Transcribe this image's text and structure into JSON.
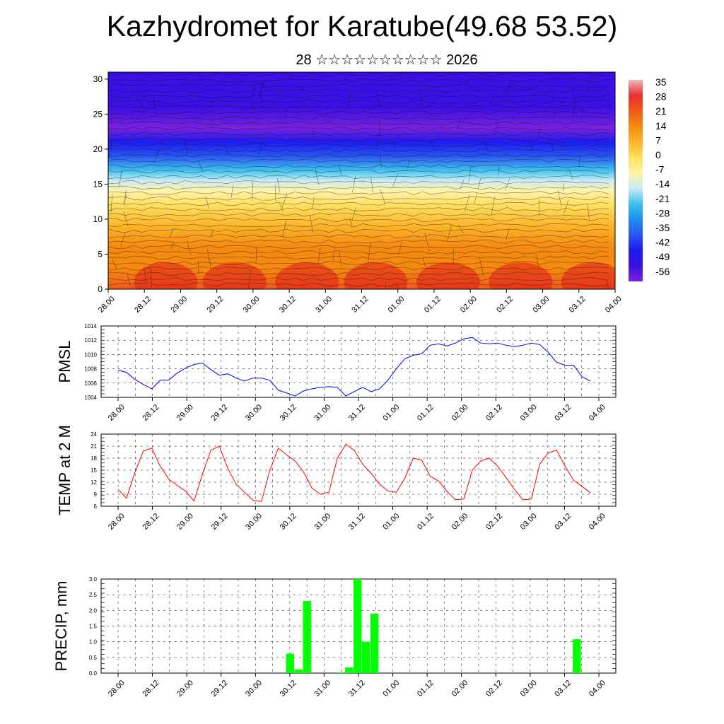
{
  "title": "Kazhydromet for Karatube(49.68 53.52)",
  "subtitle": "28 ☆☆☆☆☆☆☆☆☆☆ 2026",
  "chart_data": [
    {
      "type": "heatmap",
      "panel": "vertical-section",
      "x_ticks": [
        "28.00",
        "28.12",
        "29.00",
        "29.12",
        "30.00",
        "30.12",
        "31.00",
        "31.12",
        "01.00",
        "01.12",
        "02.00",
        "02.12",
        "03.00",
        "03.12",
        "04.00"
      ],
      "y_ticks": [
        0,
        5,
        10,
        15,
        20,
        25,
        30
      ],
      "ylim": [
        0,
        31
      ],
      "colorbar_labels": [
        "35",
        "28",
        "21",
        "14",
        "7",
        "0",
        "-7",
        "-14",
        "-21",
        "-28",
        "-35",
        "-42",
        "-49",
        "-56"
      ],
      "colorbar_colors": [
        "#f2b6b8",
        "#e83030",
        "#ef5a1a",
        "#f68a10",
        "#fbb42a",
        "#fde060",
        "#fff3a8",
        "#c8ecf6",
        "#3fc0ee",
        "#1c8ff0",
        "#2a55f2",
        "#1c1cf0",
        "#3a10e4",
        "#7a22dc"
      ],
      "temperature_profile": [
        {
          "level": 0,
          "value": 22
        },
        {
          "level": 3,
          "value": 17
        },
        {
          "level": 6,
          "value": 13
        },
        {
          "level": 9,
          "value": 8
        },
        {
          "level": 12,
          "value": 3
        },
        {
          "level": 14,
          "value": -5
        },
        {
          "level": 15.5,
          "value": -13
        },
        {
          "level": 17,
          "value": -20
        },
        {
          "level": 19,
          "value": -32
        },
        {
          "level": 21,
          "value": -44
        },
        {
          "level": 23,
          "value": -54
        },
        {
          "level": 26,
          "value": -52
        },
        {
          "level": 31,
          "value": -48
        }
      ]
    },
    {
      "type": "line",
      "ylabel": "PMSL",
      "ylim": [
        1004,
        1014
      ],
      "y_ticks": [
        1004,
        1006,
        1008,
        1010,
        1012,
        1014
      ],
      "x_ticks": [
        "28.00",
        "28.12",
        "29.00",
        "29.12",
        "30.00",
        "30.12",
        "31.00",
        "31.12",
        "01.00",
        "01.12",
        "02.00",
        "02.12",
        "03.00",
        "03.12",
        "04.00"
      ],
      "color": "#0000ff",
      "series": [
        {
          "values": [
            1007.8,
            1007.5,
            1006.5,
            1005.8,
            1005.2,
            1006.4,
            1006.4,
            1007.4,
            1008.1,
            1008.6,
            1008.8,
            1007.9,
            1007.1,
            1007.3,
            1006.7,
            1006.3,
            1006.7,
            1006.7,
            1006.4,
            1005.0,
            1004.6,
            1004.2,
            1004.9,
            1005.2,
            1005.4,
            1005.5,
            1005.4,
            1004.2,
            1004.8,
            1005.4,
            1004.8,
            1005.2,
            1006.4,
            1008.0,
            1009.4,
            1009.9,
            1010.1,
            1011.3,
            1011.5,
            1011.2,
            1011.6,
            1012.2,
            1012.4,
            1011.6,
            1011.5,
            1011.6,
            1011.3,
            1011.1,
            1011.3,
            1011.6,
            1011.4,
            1010.3,
            1008.9,
            1008.5,
            1008.5,
            1006.9,
            1006.3
          ]
        }
      ]
    },
    {
      "type": "line",
      "ylabel": "TEMP at 2 M",
      "ylim": [
        6,
        24
      ],
      "y_ticks": [
        6,
        9,
        12,
        15,
        18,
        21,
        24
      ],
      "x_ticks": [
        "28.00",
        "28.12",
        "29.00",
        "29.12",
        "30.00",
        "30.12",
        "31.00",
        "31.12",
        "01.00",
        "01.12",
        "02.00",
        "02.12",
        "03.00",
        "03.12",
        "04.00"
      ],
      "color": "#ff0000",
      "series": [
        {
          "values": [
            10.2,
            8.0,
            14.5,
            19.8,
            20.5,
            16.0,
            12.8,
            11.2,
            9.8,
            7.3,
            14.0,
            20.0,
            21.0,
            15.5,
            11.5,
            9.5,
            7.5,
            7.2,
            15.0,
            20.5,
            18.8,
            17.3,
            14.5,
            10.5,
            9.0,
            9.5,
            18.0,
            21.5,
            20.0,
            16.5,
            14.2,
            11.5,
            9.8,
            9.5,
            13.0,
            18.0,
            17.5,
            13.5,
            12.3,
            9.7,
            7.6,
            7.8,
            15.0,
            17.3,
            18.0,
            16.0,
            13.2,
            10.2,
            7.6,
            7.8,
            16.5,
            19.3,
            20.0,
            16.0,
            12.5,
            11.0,
            9.3
          ]
        }
      ]
    },
    {
      "type": "bar",
      "ylabel": "PRECIP, mm",
      "ylim": [
        0,
        3.0
      ],
      "y_ticks": [
        "0.0",
        "0.5",
        "1.0",
        "1.5",
        "2.0",
        "2.5",
        "3.0"
      ],
      "x_ticks": [
        "28.00",
        "28.12",
        "29.00",
        "29.12",
        "30.00",
        "30.12",
        "31.00",
        "31.12",
        "01.00",
        "01.12",
        "02.00",
        "02.12",
        "03.00",
        "03.12",
        "04.00"
      ],
      "color": "#00ff00",
      "series": [
        {
          "values": [
            0,
            0,
            0,
            0,
            0,
            0,
            0,
            0,
            0,
            0,
            0,
            0,
            0,
            0,
            0,
            0,
            0,
            0,
            0,
            0,
            0.62,
            0.12,
            2.3,
            0,
            0,
            0,
            0.02,
            0.18,
            3.0,
            1.0,
            1.9,
            0,
            0,
            0,
            0,
            0,
            0,
            0,
            0,
            0,
            0,
            0,
            0,
            0,
            0,
            0,
            0,
            0,
            0,
            0,
            0,
            0,
            0,
            0,
            1.08,
            0.02,
            0
          ]
        }
      ]
    }
  ]
}
